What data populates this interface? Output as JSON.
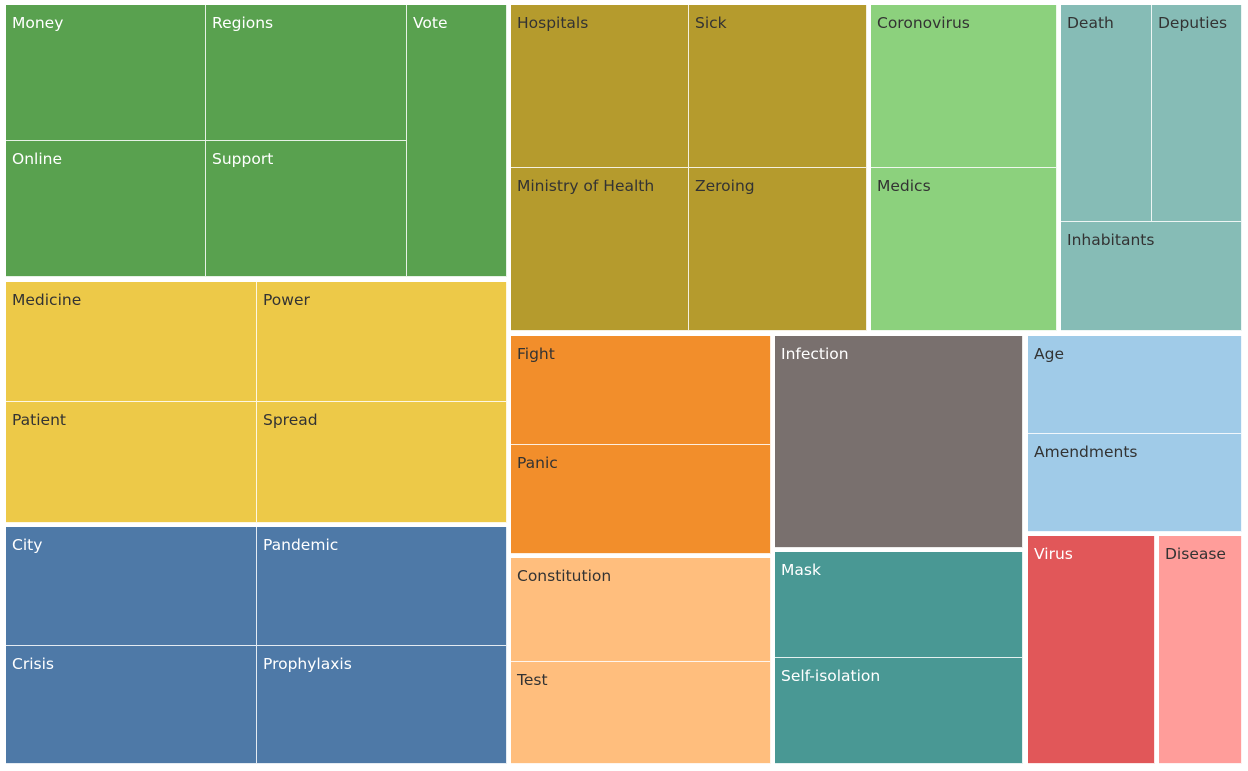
{
  "chart_data": {
    "type": "treemap",
    "groups": [
      {
        "color": "#59a14f",
        "text_color": "#ffffff",
        "items": [
          {
            "label": "Money"
          },
          {
            "label": "Regions"
          },
          {
            "label": "Vote"
          },
          {
            "label": "Online"
          },
          {
            "label": "Support"
          }
        ]
      },
      {
        "color": "#b59b2d",
        "text_color": "#333333",
        "items": [
          {
            "label": "Hospitals"
          },
          {
            "label": "Sick"
          },
          {
            "label": "Ministry of Health"
          },
          {
            "label": "Zeroing"
          }
        ]
      },
      {
        "color": "#8cd17d",
        "text_color": "#333333",
        "items": [
          {
            "label": "Coronovirus"
          },
          {
            "label": "Medics"
          }
        ]
      },
      {
        "color": "#86bcb6",
        "text_color": "#333333",
        "items": [
          {
            "label": "Death"
          },
          {
            "label": "Deputies"
          },
          {
            "label": "Inhabitants"
          }
        ]
      },
      {
        "color": "#edc948",
        "text_color": "#333333",
        "items": [
          {
            "label": "Medicine"
          },
          {
            "label": "Power"
          },
          {
            "label": "Patient"
          },
          {
            "label": "Spread"
          }
        ]
      },
      {
        "color": "#f28e2b",
        "text_color": "#333333",
        "items": [
          {
            "label": "Fight"
          },
          {
            "label": "Panic"
          }
        ]
      },
      {
        "color": "#79706e",
        "text_color": "#ffffff",
        "items": [
          {
            "label": "Infection"
          }
        ]
      },
      {
        "color": "#a0cbe8",
        "text_color": "#333333",
        "items": [
          {
            "label": "Age"
          },
          {
            "label": "Amendments"
          }
        ]
      },
      {
        "color": "#4e79a7",
        "text_color": "#ffffff",
        "items": [
          {
            "label": "City"
          },
          {
            "label": "Pandemic"
          },
          {
            "label": "Crisis"
          },
          {
            "label": "Prophylaxis"
          }
        ]
      },
      {
        "color": "#ffbe7d",
        "text_color": "#333333",
        "items": [
          {
            "label": "Constitution"
          },
          {
            "label": "Test"
          }
        ]
      },
      {
        "color": "#499894",
        "text_color": "#ffffff",
        "items": [
          {
            "label": "Mask"
          },
          {
            "label": "Self-isolation"
          }
        ]
      },
      {
        "color": "#e15759",
        "text_color": "#ffffff",
        "items": [
          {
            "label": "Virus"
          }
        ]
      },
      {
        "color": "#ff9d9a",
        "text_color": "#333333",
        "items": [
          {
            "label": "Disease"
          }
        ]
      }
    ]
  }
}
